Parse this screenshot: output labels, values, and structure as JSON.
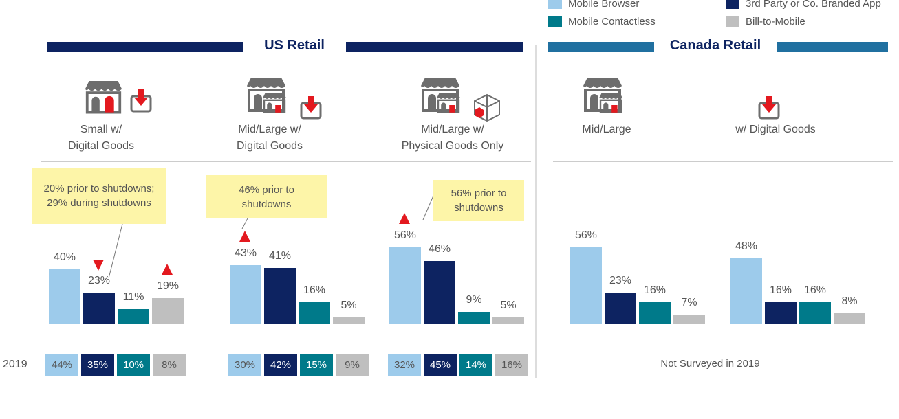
{
  "colors": {
    "mobile_browser": "#9dcbeb",
    "third_party_app": "#0d2361",
    "mobile_contactless": "#007a8a",
    "bill_to_mobile": "#bfbfbf",
    "us_header": "#0d2361",
    "canada_header": "#2070a0",
    "accent_red": "#e3191f",
    "callout": "#fdf5a8"
  },
  "chart_data": {
    "type": "bar",
    "legend": {
      "placement": "top-right",
      "entries": [
        "Mobile Browser",
        "3rd Party or Co. Branded App",
        "Mobile Contactless",
        "Bill-to-Mobile"
      ]
    },
    "sections": [
      {
        "title": "US Retail",
        "groups": [
          {
            "label_line1": "Small w/",
            "label_line2": "Digital Goods",
            "icons": [
              "store-icon",
              "download-icon"
            ],
            "values": [
              40,
              23,
              11,
              19
            ],
            "labels": [
              "40%",
              "23%",
              "11%",
              "19%"
            ],
            "trend": {
              "1": "down",
              "3": "up"
            },
            "callout": "20% prior to shutdowns; 29% during shutdowns",
            "y2019": [
              "44%",
              "35%",
              "10%",
              "8%"
            ]
          },
          {
            "label_line1": "Mid/Large w/",
            "label_line2": "Digital Goods",
            "icons": [
              "stores-icon",
              "download-icon"
            ],
            "values": [
              43,
              41,
              16,
              5
            ],
            "labels": [
              "43%",
              "41%",
              "16%",
              "5%"
            ],
            "trend": {
              "0": "up"
            },
            "callout": "46% prior to shutdowns",
            "y2019": [
              "30%",
              "42%",
              "15%",
              "9%"
            ]
          },
          {
            "label_line1": "Mid/Large w/",
            "label_line2": "Physical Goods Only",
            "icons": [
              "stores-icon",
              "box-icon"
            ],
            "values": [
              56,
              46,
              9,
              5
            ],
            "labels": [
              "56%",
              "46%",
              "9%",
              "5%"
            ],
            "trend": {
              "0": "up"
            },
            "callout": "56% prior to shutdowns",
            "y2019": [
              "32%",
              "45%",
              "14%",
              "16%"
            ]
          }
        ]
      },
      {
        "title": "Canada Retail",
        "groups": [
          {
            "label_line1": "Mid/Large",
            "label_line2": "",
            "icons": [
              "stores-icon"
            ],
            "values": [
              56,
              23,
              16,
              7
            ],
            "labels": [
              "56%",
              "23%",
              "16%",
              "7%"
            ]
          },
          {
            "label_line1": "w/ Digital Goods",
            "label_line2": "",
            "icons": [
              "download-icon"
            ],
            "values": [
              48,
              16,
              16,
              8
            ],
            "labels": [
              "48%",
              "16%",
              "16%",
              "8%"
            ]
          }
        ]
      }
    ],
    "row_2019_label": "2019",
    "canada_2019_note": "Not Surveyed in 2019"
  }
}
